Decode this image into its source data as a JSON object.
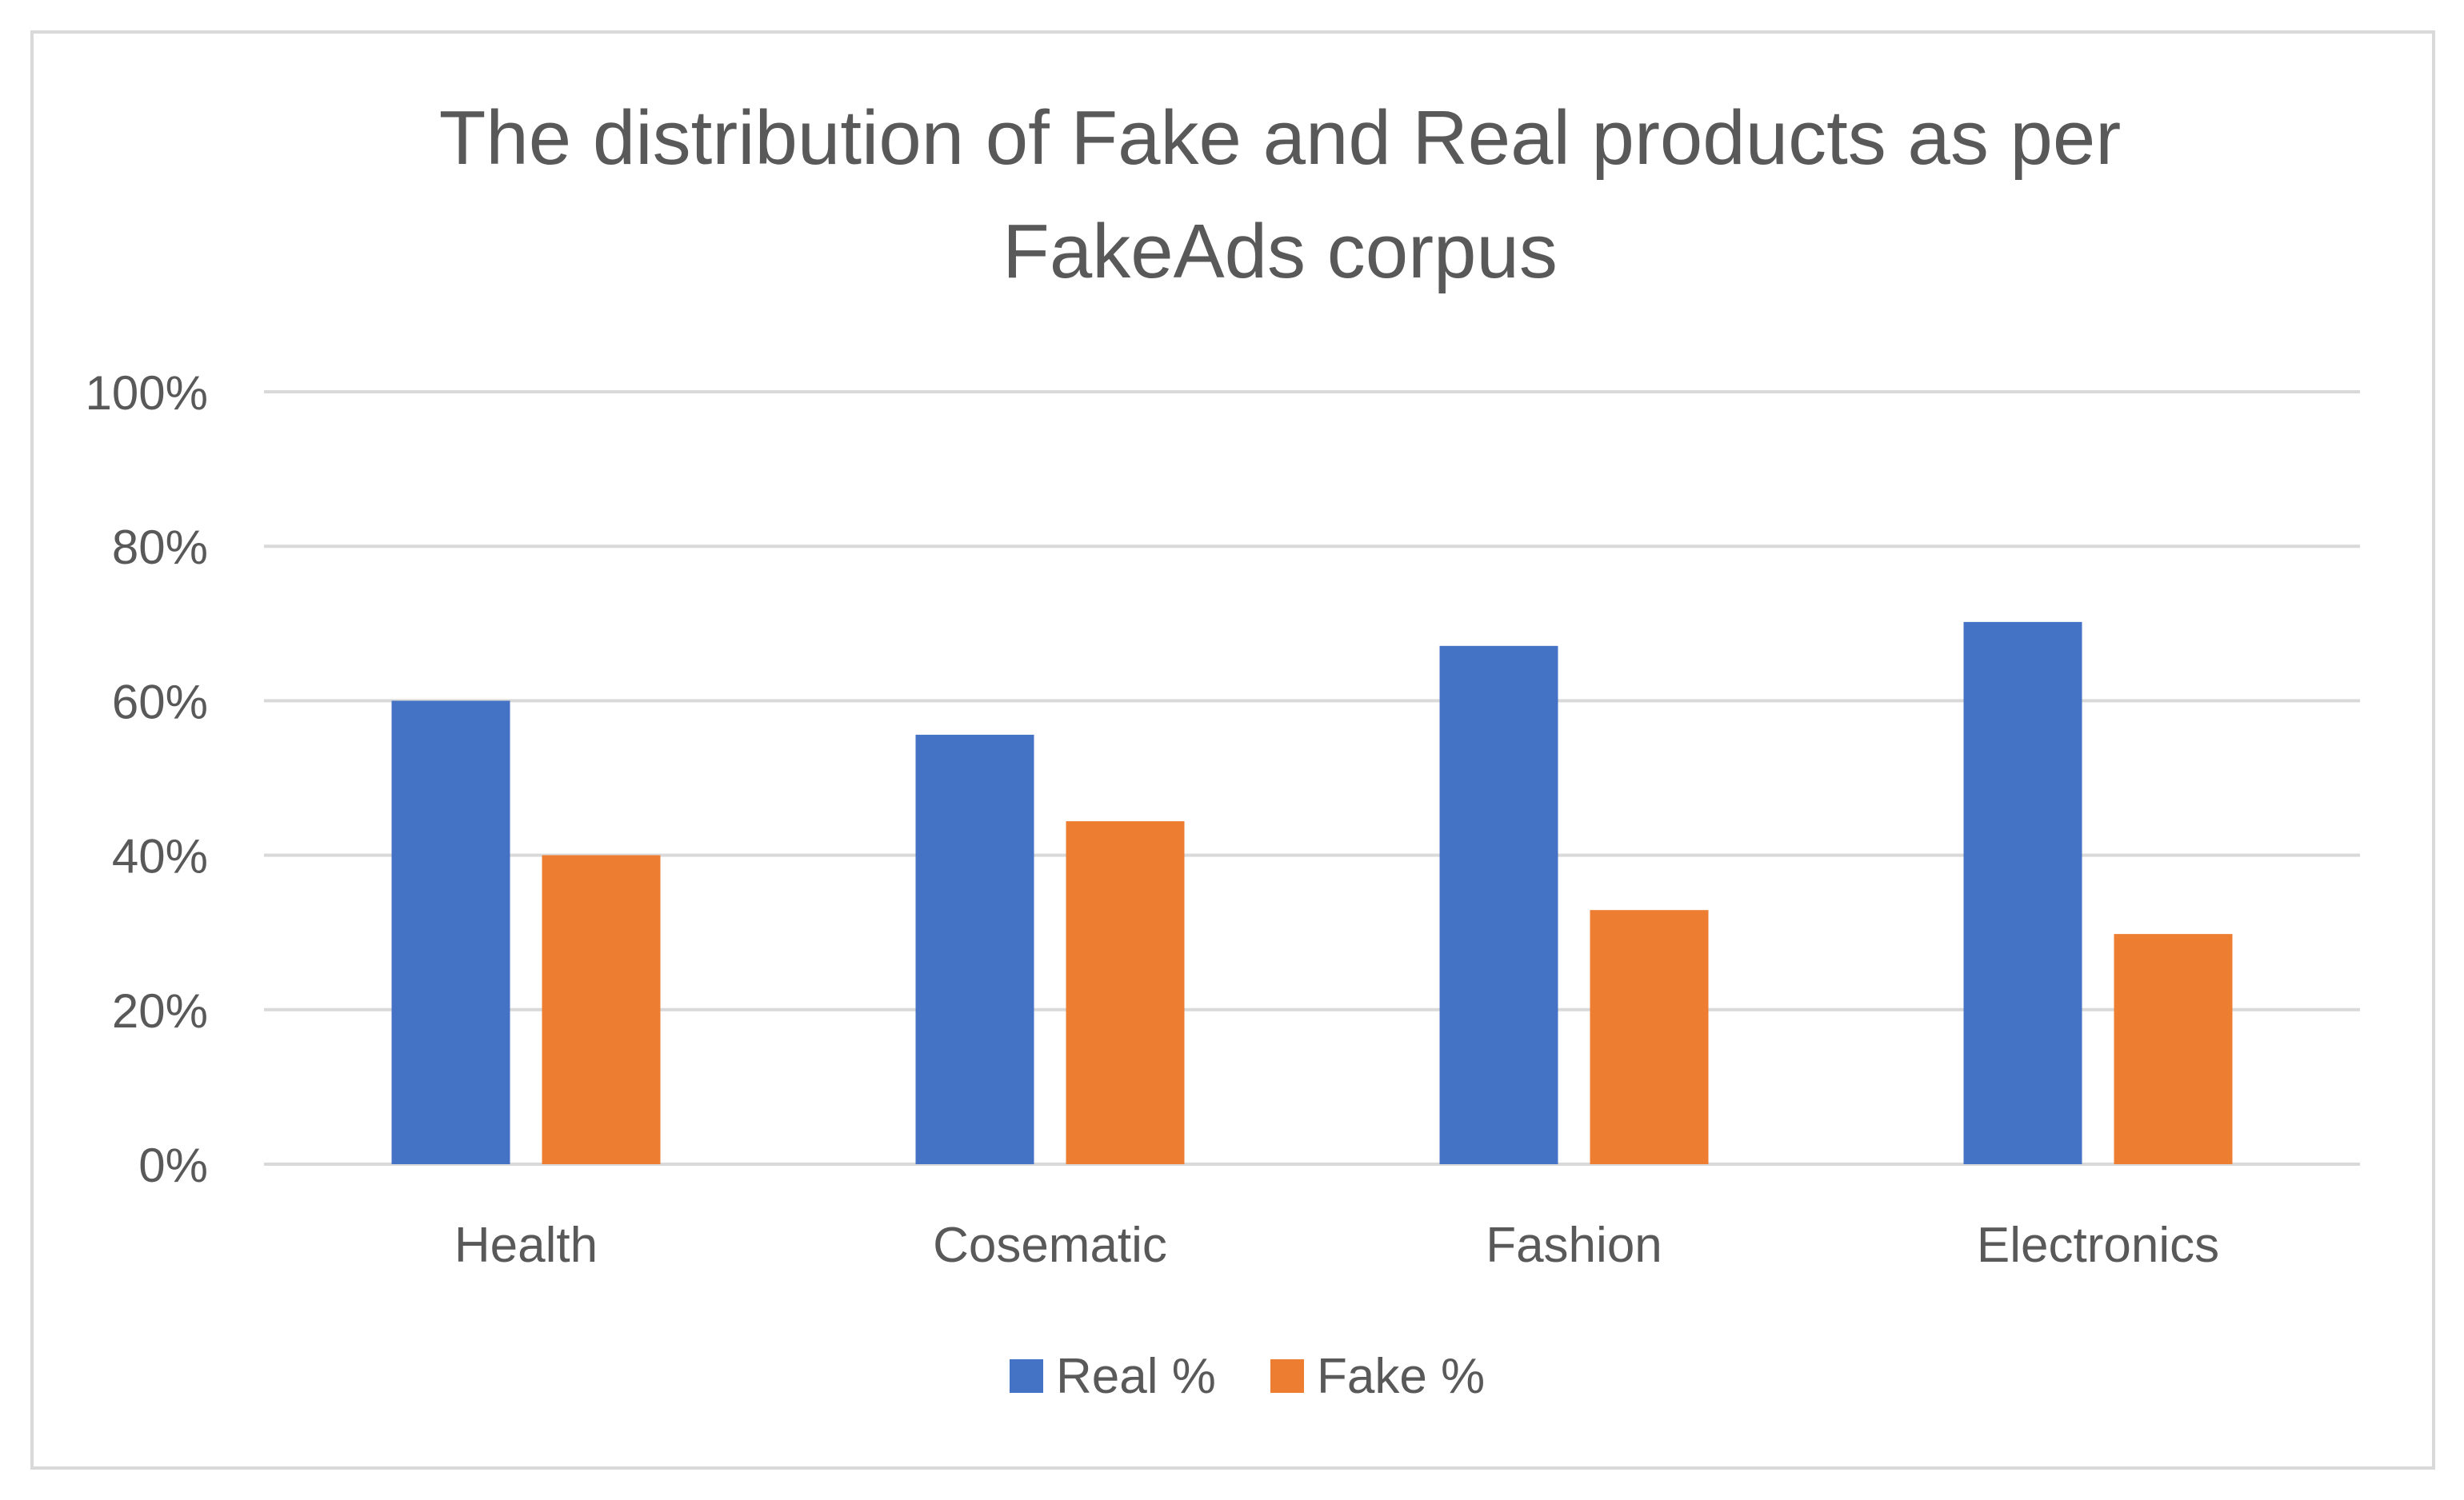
{
  "chart_data": {
    "type": "bar",
    "title": "The distribution of Fake and Real products as per FakeAds corpus",
    "title_lines": [
      "The distribution of Fake and Real products as per",
      "FakeAds corpus"
    ],
    "categories": [
      "Health",
      "Cosematic",
      "Fashion",
      "Electronics"
    ],
    "series": [
      {
        "name": "Real %",
        "values": [
          60,
          55.6,
          67.1,
          70.2
        ],
        "color": "#4472c4"
      },
      {
        "name": "Fake %",
        "values": [
          40,
          44.4,
          32.9,
          29.8
        ],
        "color": "#ed7d31"
      }
    ],
    "yticks": [
      "0%",
      "20%",
      "40%",
      "60%",
      "80%",
      "100%"
    ],
    "ylim": [
      0,
      100
    ],
    "xlabel": "",
    "ylabel": "",
    "grid": true,
    "legend_position": "bottom"
  }
}
